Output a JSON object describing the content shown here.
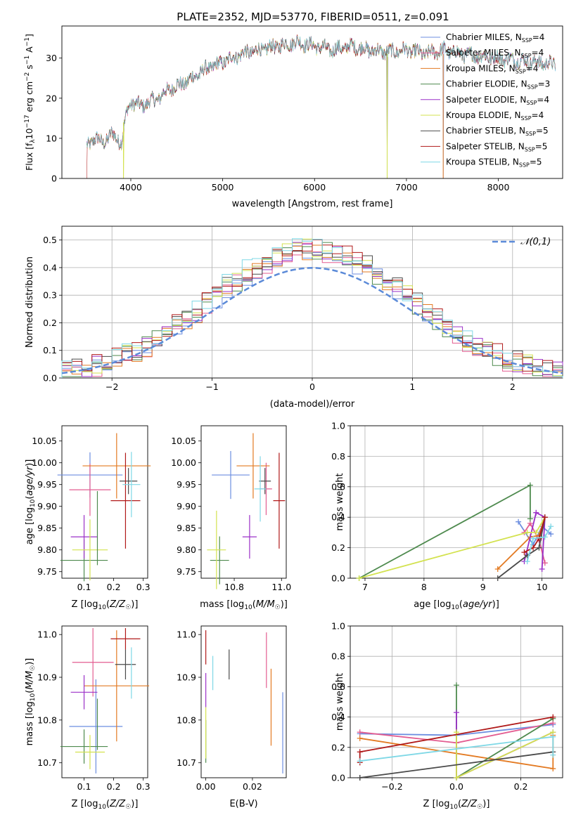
{
  "figure_title": "PLATE=2352, MJD=53770, FIBERID=0511, z=0.091",
  "colors": {
    "Chabrier MILES": "#6c8ee0",
    "Salpeter MILES": "#e35d91",
    "Kroupa MILES": "#e37a22",
    "Chabrier ELODIE": "#4e8a4e",
    "Salpeter ELODIE": "#9b30c8",
    "Kroupa ELODIE": "#d3e24f",
    "Chabrier STELIB": "#4a4a4a",
    "Salpeter STELIB": "#b01919",
    "Kroupa STELIB": "#7fd8e6"
  },
  "models": [
    {
      "name": "Chabrier MILES",
      "nssp": "4"
    },
    {
      "name": "Salpeter MILES",
      "nssp": "4"
    },
    {
      "name": "Kroupa MILES",
      "nssp": "4"
    },
    {
      "name": "Chabrier ELODIE",
      "nssp": "3"
    },
    {
      "name": "Salpeter ELODIE",
      "nssp": "4"
    },
    {
      "name": "Kroupa ELODIE",
      "nssp": "4"
    },
    {
      "name": "Chabrier STELIB",
      "nssp": "5"
    },
    {
      "name": "Salpeter STELIB",
      "nssp": "5"
    },
    {
      "name": "Kroupa STELIB",
      "nssp": "5"
    }
  ],
  "chart_data": [
    {
      "id": "spectrum",
      "type": "line",
      "xlabel": "wavelength [Angstrom, rest frame]",
      "ylabel": "Flux [f_λ 10^-17 erg cm^-2 s^-1 A^-1]",
      "xlim": [
        3250,
        8700
      ],
      "ylim": [
        0,
        38
      ],
      "xticks": [
        4000,
        5000,
        6000,
        7000,
        8000
      ],
      "yticks": [
        0,
        10,
        20,
        30
      ],
      "grid": false,
      "legend": "top-right",
      "continuum": {
        "x": [
          3520,
          3600,
          3700,
          3800,
          3900,
          3960,
          4000,
          4100,
          4200,
          4300,
          4400,
          4600,
          4800,
          5000,
          5200,
          5400,
          5600,
          5800,
          6000,
          6200,
          6400,
          6600,
          6800,
          7000,
          7200,
          7400,
          7600,
          7800,
          8000,
          8200,
          8400,
          8600
        ],
        "y": [
          8,
          10,
          9,
          11,
          9,
          17,
          19,
          18,
          19,
          20,
          22,
          24,
          27,
          29,
          31,
          32,
          33,
          34,
          33,
          32,
          33,
          32,
          31.5,
          32,
          31,
          32,
          31,
          30.5,
          30,
          29.5,
          29,
          28.5
        ]
      },
      "notes": "Overlaid best-fit spectra of all 9 models closely trace the observed spectrum; noise amplitude ~1.5 flux units; some model curves drop to 0 near 3520, 3920, 6790 and 7400 Angstrom."
    },
    {
      "id": "residuals",
      "type": "histogram",
      "xlabel": "(data-model)/error",
      "ylabel": "Normed distribution",
      "xlim": [
        -2.5,
        2.5
      ],
      "ylim": [
        0,
        0.55
      ],
      "xticks": [
        -2,
        -1,
        0,
        1,
        2
      ],
      "yticks": [
        0,
        0.1,
        0.2,
        0.3,
        0.4,
        0.5
      ],
      "grid": true,
      "legend": "top-right",
      "reference": {
        "name": "𝒩(0,1)",
        "type": "gaussian",
        "mean": 0,
        "sigma": 1
      },
      "bin_width": 0.1,
      "bin_start": -2.5,
      "notes": "Nine step histograms, one per model, each close to the N(0,1) curve with peak values ~0.45-0.52 near 0."
    },
    {
      "id": "age_vs_Z",
      "type": "errorbar",
      "xlabel": "Z [log10(Z/Z☉)]",
      "ylabel": "age [log10(age/yr)]",
      "xlim": [
        0.025,
        0.315
      ],
      "ylim": [
        9.735,
        10.085
      ],
      "xticks": [
        0.1,
        0.2,
        0.3
      ],
      "yticks": [
        9.75,
        9.8,
        9.85,
        9.9,
        9.95,
        10.0,
        10.05
      ],
      "grid": false,
      "points": [
        {
          "model": "Chabrier MILES",
          "x": 0.12,
          "y": 9.972,
          "xerr": 0.11,
          "yerr": 0.052
        },
        {
          "model": "Salpeter MILES",
          "x": 0.12,
          "y": 9.938,
          "xerr": 0.07,
          "yerr": 0.06
        },
        {
          "model": "Kroupa MILES",
          "x": 0.21,
          "y": 9.993,
          "xerr": 0.115,
          "yerr": 0.075
        },
        {
          "model": "Chabrier ELODIE",
          "x": 0.1,
          "y": 9.776,
          "xerr": 0.08,
          "yerr": 0.048
        },
        {
          "model": "Salpeter ELODIE",
          "x": 0.1,
          "y": 9.83,
          "xerr": 0.045,
          "yerr": 0.05
        },
        {
          "model": "Kroupa ELODIE",
          "x": 0.12,
          "y": 9.8,
          "xerr": 0.06,
          "yerr": 0.07
        },
        {
          "model": "Chabrier STELIB",
          "x": 0.25,
          "y": 9.958,
          "xerr": 0.03,
          "yerr": 0.03
        },
        {
          "model": "Salpeter STELIB",
          "x": 0.24,
          "y": 9.913,
          "xerr": 0.05,
          "yerr": 0.11
        },
        {
          "model": "Kroupa STELIB",
          "x": 0.26,
          "y": 9.95,
          "xerr": 0.03,
          "yerr": 0.075
        },
        {
          "model": "Chabrier ELODIE",
          "x": 0.145,
          "y": 9.85,
          "xerr": 0,
          "yerr": 0.085
        }
      ]
    },
    {
      "id": "age_vs_mass",
      "type": "errorbar",
      "xlabel": "mass [log10(M/M☉)]",
      "ylabel": "",
      "xlim": [
        10.66,
        11.02
      ],
      "ylim": [
        9.735,
        10.085
      ],
      "xticks": [
        10.8,
        11.0
      ],
      "yticks": [
        9.75,
        9.8,
        9.85,
        9.9,
        9.95,
        10.0,
        10.05
      ],
      "grid": false,
      "points": [
        {
          "model": "Chabrier MILES",
          "x": 10.785,
          "y": 9.972,
          "xerr": 0.08,
          "yerr": 0.055
        },
        {
          "model": "Salpeter MILES",
          "x": 10.935,
          "y": 9.94,
          "xerr": 0.025,
          "yerr": 0.06
        },
        {
          "model": "Kroupa MILES",
          "x": 10.88,
          "y": 9.993,
          "xerr": 0.07,
          "yerr": 0.075
        },
        {
          "model": "Chabrier ELODIE",
          "x": 10.738,
          "y": 9.776,
          "xerr": 0.04,
          "yerr": 0.055
        },
        {
          "model": "Salpeter ELODIE",
          "x": 10.865,
          "y": 9.83,
          "xerr": 0.03,
          "yerr": 0.05
        },
        {
          "model": "Kroupa ELODIE",
          "x": 10.725,
          "y": 9.8,
          "xerr": 0.04,
          "yerr": 0.09
        },
        {
          "model": "Chabrier STELIB",
          "x": 10.93,
          "y": 9.958,
          "xerr": 0.025,
          "yerr": 0.03
        },
        {
          "model": "Salpeter STELIB",
          "x": 10.99,
          "y": 9.913,
          "xerr": 0.025,
          "yerr": 0.11
        },
        {
          "model": "Kroupa STELIB",
          "x": 10.91,
          "y": 9.94,
          "xerr": 0.025,
          "yerr": 0.075
        }
      ]
    },
    {
      "id": "massweight_vs_age",
      "type": "line",
      "xlabel": "age [log10(age/yr)]",
      "ylabel": "mass weight",
      "xlim": [
        6.75,
        10.35
      ],
      "ylim": [
        0,
        1
      ],
      "xticks": [
        7,
        8,
        9,
        10
      ],
      "yticks": [
        0,
        0.2,
        0.4,
        0.6,
        0.8,
        1.0
      ],
      "grid": true,
      "series": [
        {
          "model": "Chabrier MILES",
          "x": [
            9.6,
            9.85,
            10.0,
            10.15
          ],
          "y": [
            0.37,
            0.22,
            0.34,
            0.29
          ]
        },
        {
          "model": "Salpeter MILES",
          "x": [
            9.7,
            9.8,
            9.95,
            10.05
          ],
          "y": [
            0.3,
            0.36,
            0.25,
            0.1
          ]
        },
        {
          "model": "Kroupa MILES",
          "x": [
            9.25,
            9.8,
            9.95,
            10.05
          ],
          "y": [
            0.06,
            0.27,
            0.28,
            0.4
          ]
        },
        {
          "model": "Chabrier ELODIE",
          "x": [
            6.9,
            9.8,
            9.8
          ],
          "y": [
            0.0,
            0.61,
            0.39
          ]
        },
        {
          "model": "Salpeter ELODIE",
          "x": [
            9.7,
            9.9,
            10.05,
            10.0
          ],
          "y": [
            0.11,
            0.43,
            0.4,
            0.06
          ]
        },
        {
          "model": "Kroupa ELODIE",
          "x": [
            6.9,
            9.75,
            9.9,
            10.05
          ],
          "y": [
            0.0,
            0.3,
            0.3,
            0.4
          ]
        },
        {
          "model": "Chabrier STELIB",
          "x": [
            9.25,
            9.75,
            9.95,
            10.05
          ],
          "y": [
            0.0,
            0.15,
            0.2,
            0.4
          ]
        },
        {
          "model": "Salpeter STELIB",
          "x": [
            9.7,
            9.85,
            9.95,
            10.05
          ],
          "y": [
            0.17,
            0.2,
            0.26,
            0.4
          ]
        },
        {
          "model": "Kroupa STELIB",
          "x": [
            9.75,
            9.85,
            10.05,
            10.15
          ],
          "y": [
            0.11,
            0.26,
            0.27,
            0.34
          ]
        }
      ]
    },
    {
      "id": "mass_vs_Z",
      "type": "errorbar",
      "xlabel": "Z [log10(Z/Z☉)]",
      "ylabel": "mass [log10(M/M☉)]",
      "xlim": [
        0.025,
        0.315
      ],
      "ylim": [
        10.665,
        11.02
      ],
      "xticks": [
        0.1,
        0.2,
        0.3
      ],
      "yticks": [
        10.7,
        10.8,
        10.9,
        11.0
      ],
      "grid": false,
      "points": [
        {
          "model": "Chabrier MILES",
          "x": 0.14,
          "y": 10.785,
          "xerr": 0.09,
          "yerr": 0.11
        },
        {
          "model": "Salpeter MILES",
          "x": 0.13,
          "y": 10.935,
          "xerr": 0.07,
          "yerr": 0.08
        },
        {
          "model": "Kroupa MILES",
          "x": 0.21,
          "y": 10.88,
          "xerr": 0.11,
          "yerr": 0.13
        },
        {
          "model": "Chabrier ELODIE",
          "x": 0.1,
          "y": 10.738,
          "xerr": 0.08,
          "yerr": 0.04
        },
        {
          "model": "Salpeter ELODIE",
          "x": 0.1,
          "y": 10.865,
          "xerr": 0.045,
          "yerr": 0.04
        },
        {
          "model": "Kroupa ELODIE",
          "x": 0.12,
          "y": 10.725,
          "xerr": 0.05,
          "yerr": 0.04
        },
        {
          "model": "Chabrier STELIB",
          "x": 0.24,
          "y": 10.93,
          "xerr": 0.035,
          "yerr": 0.035
        },
        {
          "model": "Salpeter STELIB",
          "x": 0.24,
          "y": 10.99,
          "xerr": 0.05,
          "yerr": 0.025
        },
        {
          "model": "Kroupa STELIB",
          "x": 0.26,
          "y": 10.91,
          "xerr": 0.0,
          "yerr": 0.06
        },
        {
          "model": "Chabrier ELODIE",
          "x": 0.145,
          "y": 10.79,
          "xerr": 0,
          "yerr": 0.06
        }
      ]
    },
    {
      "id": "mass_vs_EBV",
      "type": "errorbar",
      "xlabel": "E(B-V)",
      "ylabel": "",
      "xlim": [
        -0.002,
        0.0345
      ],
      "ylim": [
        10.665,
        11.02
      ],
      "xticks": [
        0.0,
        0.02
      ],
      "yticks": [
        10.7,
        10.8,
        10.9,
        11.0
      ],
      "grid": false,
      "points": [
        {
          "model": "Chabrier MILES",
          "x": 0.033,
          "y": 10.77,
          "xerr": 0,
          "yerr": 0.095
        },
        {
          "model": "Salpeter MILES",
          "x": 0.026,
          "y": 10.94,
          "xerr": 0,
          "yerr": 0.065
        },
        {
          "model": "Kroupa MILES",
          "x": 0.028,
          "y": 10.83,
          "xerr": 0,
          "yerr": 0.09
        },
        {
          "model": "Chabrier ELODIE",
          "x": 0.0,
          "y": 10.75,
          "xerr": 0,
          "yerr": 0.05
        },
        {
          "model": "Salpeter ELODIE",
          "x": 0.0,
          "y": 10.87,
          "xerr": 0,
          "yerr": 0.04
        },
        {
          "model": "Kroupa ELODIE",
          "x": 0.0,
          "y": 10.77,
          "xerr": 0,
          "yerr": 0.06
        },
        {
          "model": "Chabrier STELIB",
          "x": 0.01,
          "y": 10.93,
          "xerr": 0,
          "yerr": 0.035
        },
        {
          "model": "Salpeter STELIB",
          "x": 0.0,
          "y": 10.97,
          "xerr": 0,
          "yerr": 0.04
        },
        {
          "model": "Kroupa STELIB",
          "x": 0.003,
          "y": 10.91,
          "xerr": 0,
          "yerr": 0.04
        }
      ]
    },
    {
      "id": "massweight_vs_Z",
      "type": "line",
      "xlabel": "Z [log10(Z/Z☉)]",
      "ylabel": "mass weight",
      "xlim": [
        -0.33,
        0.33
      ],
      "ylim": [
        0,
        1
      ],
      "xticks": [
        -0.2,
        0.0,
        0.2
      ],
      "yticks": [
        0,
        0.2,
        0.4,
        0.6,
        0.8,
        1.0
      ],
      "grid": true,
      "series": [
        {
          "model": "Chabrier MILES",
          "x": [
            -0.3,
            0.0,
            0.3
          ],
          "y": [
            0.29,
            0.28,
            0.35
          ]
        },
        {
          "model": "Salpeter MILES",
          "x": [
            -0.3,
            0.0,
            0.3
          ],
          "y": [
            0.3,
            0.23,
            0.36
          ]
        },
        {
          "model": "Kroupa MILES",
          "x": [
            -0.3,
            0.3,
            0.3
          ],
          "y": [
            0.26,
            0.06,
            0.28
          ]
        },
        {
          "model": "Chabrier ELODIE",
          "x": [
            0.0,
            0.0,
            0.3
          ],
          "y": [
            0.61,
            0.0,
            0.39
          ]
        },
        {
          "model": "Salpeter ELODIE",
          "x": [
            0.0,
            0.0,
            0.3
          ],
          "y": [
            0.43,
            0.0,
            0.3
          ]
        },
        {
          "model": "Kroupa ELODIE",
          "x": [
            0.0,
            0.0,
            0.3
          ],
          "y": [
            0.3,
            0.0,
            0.3
          ]
        },
        {
          "model": "Chabrier STELIB",
          "x": [
            -0.3,
            -0.3,
            0.3
          ],
          "y": [
            0.0,
            0.0,
            0.17
          ]
        },
        {
          "model": "Salpeter STELIB",
          "x": [
            -0.3,
            -0.3,
            0.3
          ],
          "y": [
            0.1,
            0.17,
            0.4
          ]
        },
        {
          "model": "Kroupa STELIB",
          "x": [
            -0.3,
            0.3,
            0.3
          ],
          "y": [
            0.11,
            0.27,
            0.15
          ]
        }
      ]
    }
  ]
}
